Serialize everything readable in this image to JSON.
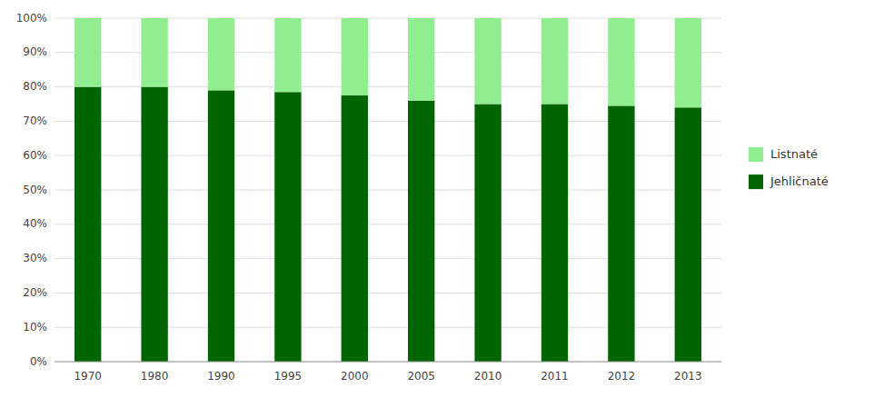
{
  "chart_data": {
    "type": "bar",
    "stacked": true,
    "categories": [
      "1970",
      "1980",
      "1990",
      "1995",
      "2000",
      "2005",
      "2010",
      "2011",
      "2012",
      "2013"
    ],
    "series": [
      {
        "name": "Jehličnaté",
        "color": "#006400",
        "values": [
          80.0,
          80.0,
          79.0,
          78.5,
          77.5,
          76.0,
          75.0,
          75.0,
          74.5,
          74.0
        ]
      },
      {
        "name": "Listnaté",
        "color": "#90EE90",
        "values": [
          20.0,
          20.0,
          21.0,
          21.5,
          22.5,
          24.0,
          25.0,
          25.0,
          25.5,
          26.0
        ]
      }
    ],
    "ylim": [
      0,
      100
    ],
    "yticks": [
      {
        "value": 0,
        "label": "0%"
      },
      {
        "value": 10,
        "label": "10%"
      },
      {
        "value": 20,
        "label": "20%"
      },
      {
        "value": 30,
        "label": "30%"
      },
      {
        "value": 40,
        "label": "40%"
      },
      {
        "value": 50,
        "label": "50%"
      },
      {
        "value": 60,
        "label": "60%"
      },
      {
        "value": 70,
        "label": "70%"
      },
      {
        "value": 80,
        "label": "80%"
      },
      {
        "value": 90,
        "label": "90%"
      },
      {
        "value": 100,
        "label": "100%"
      }
    ],
    "grid": true,
    "legend": "right"
  }
}
